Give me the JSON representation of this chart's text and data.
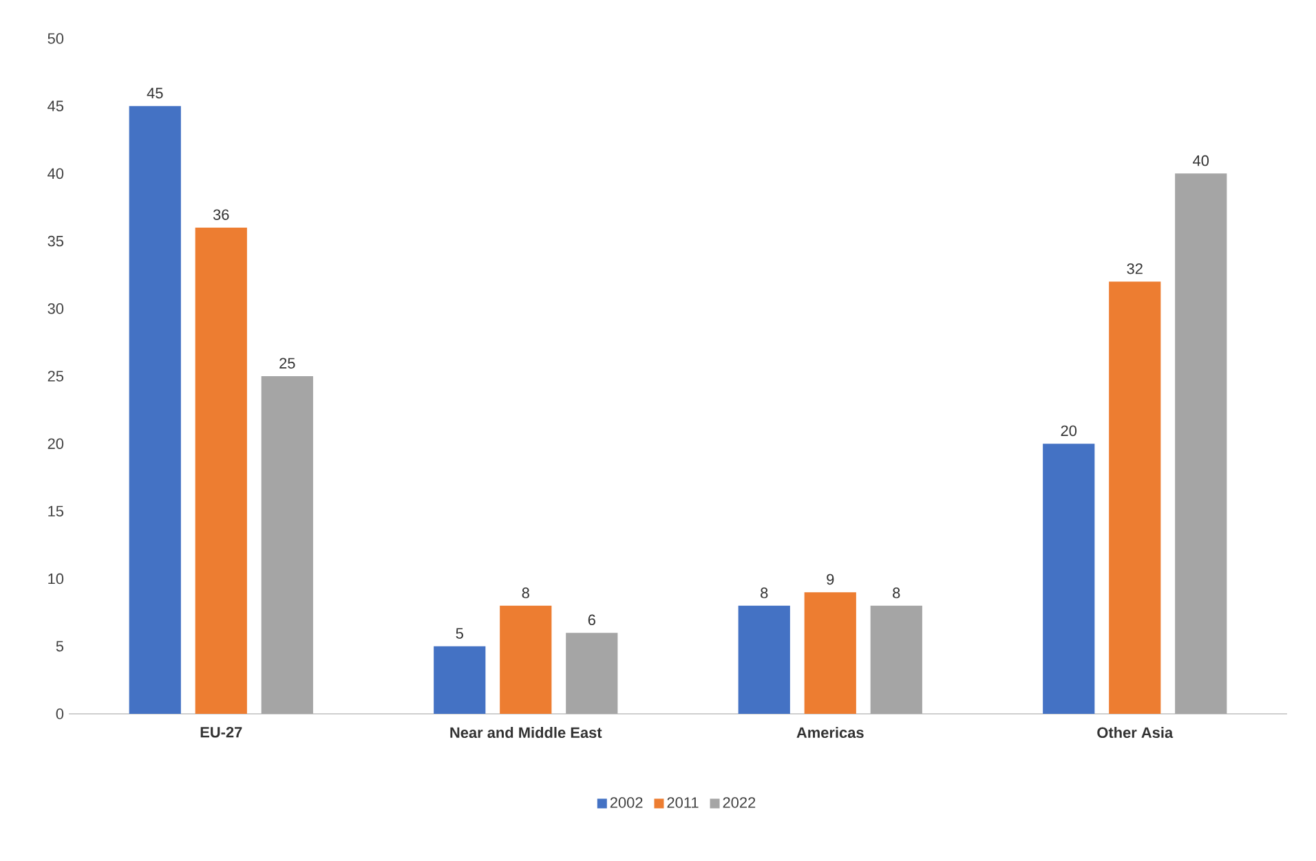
{
  "chart_data": {
    "type": "bar",
    "categories": [
      "EU-27",
      "Near and Middle East",
      "Americas",
      "Other Asia"
    ],
    "series": [
      {
        "name": "2002",
        "color": "#4472c4",
        "values": [
          45,
          5,
          8,
          20
        ]
      },
      {
        "name": "2011",
        "color": "#ed7d31",
        "values": [
          36,
          8,
          9,
          32
        ]
      },
      {
        "name": "2022",
        "color": "#a5a5a5",
        "values": [
          25,
          6,
          8,
          40
        ]
      }
    ],
    "ylim": [
      0,
      50
    ],
    "yticks": [
      0,
      5,
      10,
      15,
      20,
      25,
      30,
      35,
      40,
      45,
      50
    ],
    "data_labels": true,
    "legend": "bottom",
    "grid": false
  }
}
